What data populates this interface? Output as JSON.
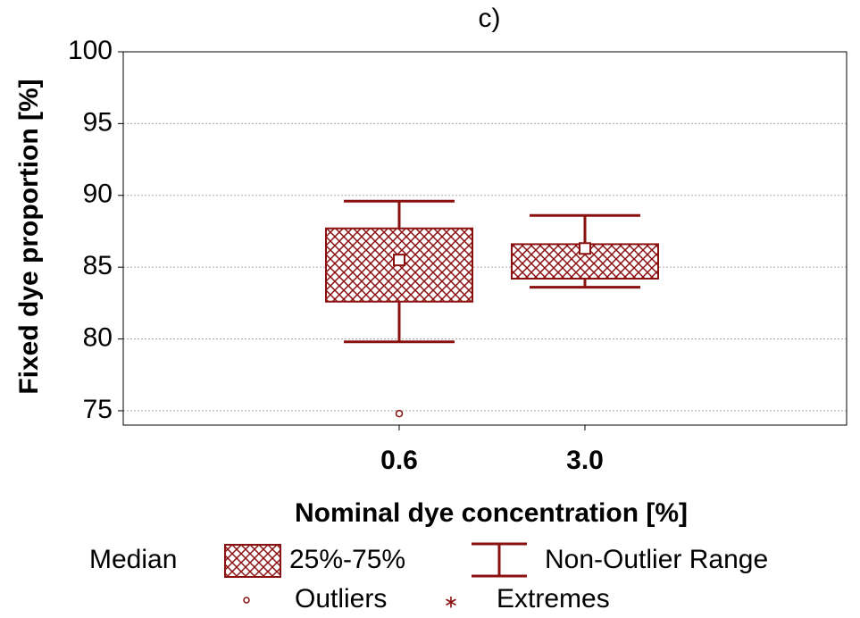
{
  "chart_data": {
    "type": "box",
    "title": "c)",
    "x_label": "Nominal dye concentration [%]",
    "y_label": "Fixed dye proportion  [%]",
    "categories": [
      "0.6",
      "3.0"
    ],
    "color": "#8b1010",
    "whisker_low": [
      79.8,
      83.6
    ],
    "q1": [
      82.6,
      84.2
    ],
    "median": [
      85.5,
      86.3
    ],
    "q3": [
      87.7,
      86.6
    ],
    "whisker_high": [
      89.6,
      88.6
    ],
    "outliers": [
      [
        74.8
      ],
      []
    ],
    "ylim": [
      74,
      100
    ],
    "yticks": [
      75,
      80,
      85,
      90,
      95,
      100
    ],
    "grid": true,
    "legend": [
      "Median",
      "25%-75%",
      "Non-Outlier Range",
      "Outliers",
      "Extremes"
    ],
    "legend_position": "bottom"
  }
}
